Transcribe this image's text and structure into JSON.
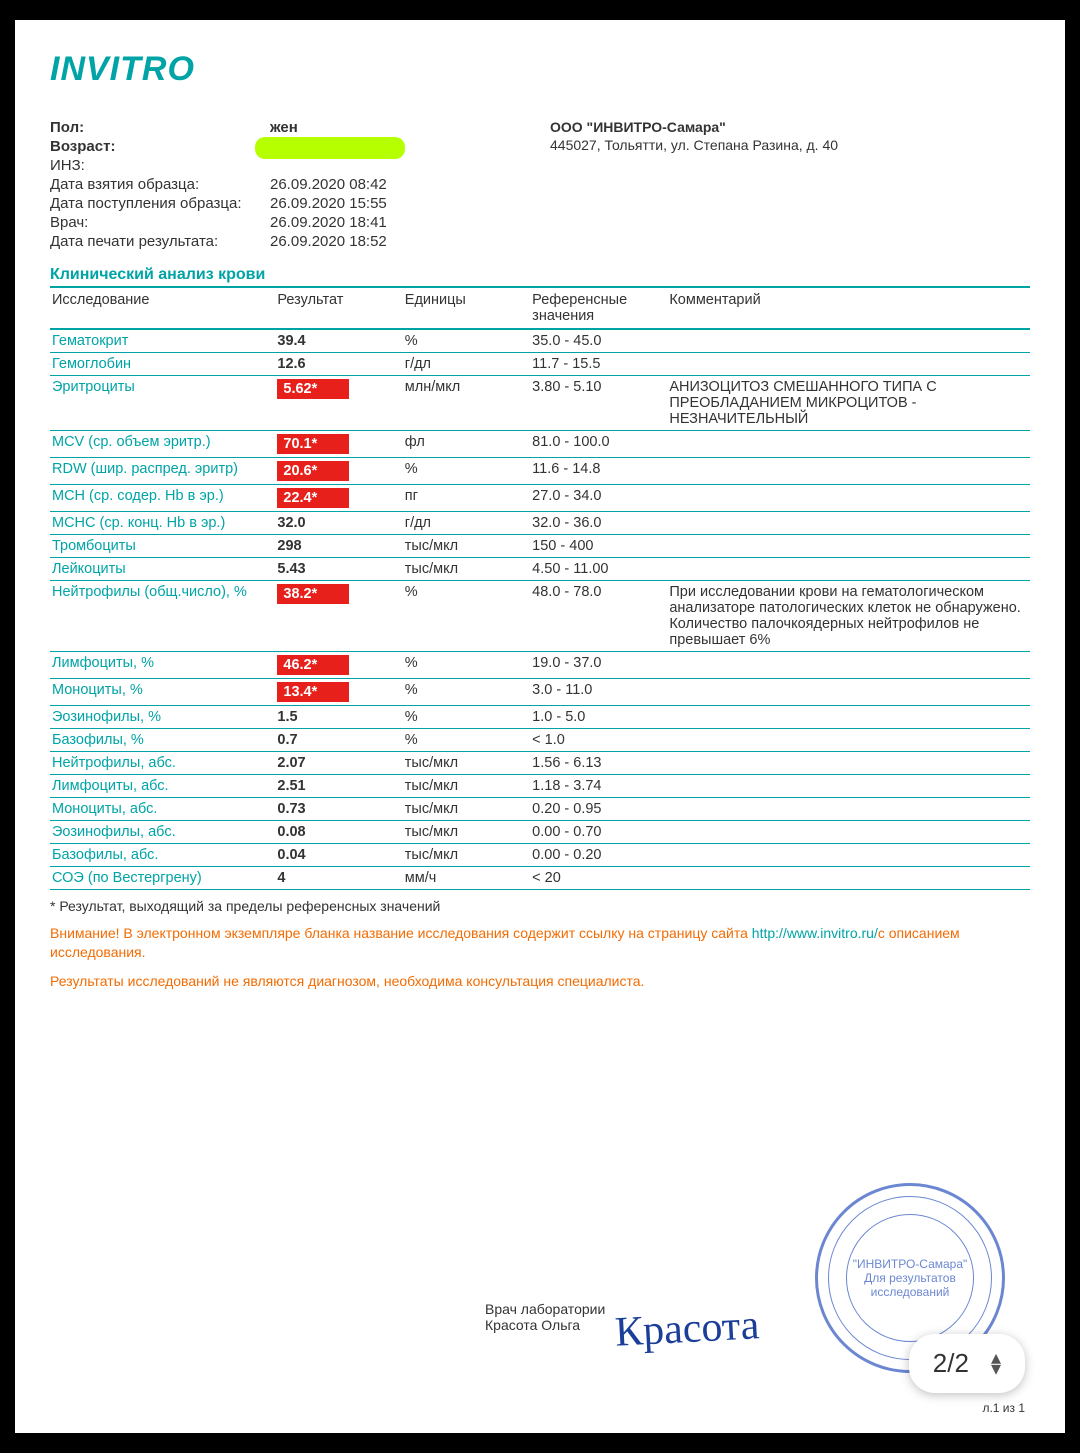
{
  "logo": "INVITRO",
  "org": {
    "name": "ООО \"ИНВИТРО-Самара\"",
    "address": "445027, Тольятти, ул. Степана Разина, д. 40"
  },
  "patient": {
    "sex_label": "Пол:",
    "sex": "жен",
    "age_label": "Возраст:",
    "inz_label": "ИНЗ:",
    "sample_taken_label": "Дата взятия образца:",
    "sample_taken": "26.09.2020 08:42",
    "sample_received_label": "Дата поступления образца:",
    "sample_received": "26.09.2020 15:55",
    "doctor_label": "Врач:",
    "doctor": "26.09.2020 18:41",
    "printed_label": "Дата печати результата:",
    "printed": "26.09.2020 18:52"
  },
  "section_title": "Клинический анализ крови",
  "columns": {
    "test": "Исследование",
    "result": "Результат",
    "units": "Единицы",
    "ref": "Референсные значения",
    "comment": "Комментарий"
  },
  "rows": [
    {
      "test": "Гематокрит",
      "result": "39.4",
      "flag": false,
      "units": "%",
      "ref": "35.0 - 45.0",
      "comment": ""
    },
    {
      "test": "Гемоглобин",
      "result": "12.6",
      "flag": false,
      "units": "г/дл",
      "ref": "11.7 - 15.5",
      "comment": ""
    },
    {
      "test": "Эритроциты",
      "result": "5.62*",
      "flag": true,
      "units": "млн/мкл",
      "ref": "3.80 - 5.10",
      "comment": "АНИЗОЦИТОЗ СМЕШАННОГО ТИПА С ПРЕОБЛАДАНИЕМ МИКРОЦИТОВ - НЕЗНАЧИТЕЛЬНЫЙ"
    },
    {
      "test": "MCV (ср. объем эритр.)",
      "result": "70.1*",
      "flag": true,
      "units": "фл",
      "ref": "81.0 - 100.0",
      "comment": ""
    },
    {
      "test": "RDW (шир. распред. эритр)",
      "result": "20.6*",
      "flag": true,
      "units": "%",
      "ref": "11.6 - 14.8",
      "comment": ""
    },
    {
      "test": "MCH (ср. содер. Hb в эр.)",
      "result": "22.4*",
      "flag": true,
      "units": "пг",
      "ref": "27.0 - 34.0",
      "comment": ""
    },
    {
      "test": "MCHC (ср. конц. Hb в эр.)",
      "result": "32.0",
      "flag": false,
      "units": "г/дл",
      "ref": "32.0 - 36.0",
      "comment": ""
    },
    {
      "test": "Тромбоциты",
      "result": "298",
      "flag": false,
      "units": "тыс/мкл",
      "ref": "150 - 400",
      "comment": ""
    },
    {
      "test": "Лейкоциты",
      "result": "5.43",
      "flag": false,
      "units": "тыс/мкл",
      "ref": "4.50 - 11.00",
      "comment": ""
    },
    {
      "test": "Нейтрофилы (общ.число), %",
      "result": "38.2*",
      "flag": true,
      "units": "%",
      "ref": "48.0 - 78.0",
      "comment": "При исследовании крови на гематологическом анализаторе патологических клеток не обнаружено. Количество палочкоядерных нейтрофилов не превышает 6%"
    },
    {
      "test": "Лимфоциты, %",
      "result": "46.2*",
      "flag": true,
      "units": "%",
      "ref": "19.0 - 37.0",
      "comment": ""
    },
    {
      "test": "Моноциты, %",
      "result": "13.4*",
      "flag": true,
      "units": "%",
      "ref": "3.0 - 11.0",
      "comment": ""
    },
    {
      "test": "Эозинофилы, %",
      "result": "1.5",
      "flag": false,
      "units": "%",
      "ref": "1.0 - 5.0",
      "comment": ""
    },
    {
      "test": "Базофилы, %",
      "result": "0.7",
      "flag": false,
      "units": "%",
      "ref": "< 1.0",
      "comment": ""
    },
    {
      "test": "Нейтрофилы, абс.",
      "result": "2.07",
      "flag": false,
      "units": "тыс/мкл",
      "ref": "1.56 - 6.13",
      "comment": ""
    },
    {
      "test": "Лимфоциты, абс.",
      "result": "2.51",
      "flag": false,
      "units": "тыс/мкл",
      "ref": "1.18 - 3.74",
      "comment": ""
    },
    {
      "test": "Моноциты, абс.",
      "result": "0.73",
      "flag": false,
      "units": "тыс/мкл",
      "ref": "0.20 - 0.95",
      "comment": ""
    },
    {
      "test": "Эозинофилы, абс.",
      "result": "0.08",
      "flag": false,
      "units": "тыс/мкл",
      "ref": "0.00 - 0.70",
      "comment": ""
    },
    {
      "test": "Базофилы, абс.",
      "result": "0.04",
      "flag": false,
      "units": "тыс/мкл",
      "ref": "0.00 - 0.20",
      "comment": ""
    },
    {
      "test": "СОЭ (по Вестергрену)",
      "result": "4",
      "flag": false,
      "units": "мм/ч",
      "ref": "< 20",
      "comment": ""
    }
  ],
  "footnote": "* Результат, выходящий за пределы референсных значений",
  "notice1_prefix": "Внимание!",
  "notice1_text": " В электронном экземпляре бланка название исследования содержит ссылку на страницу сайта ",
  "notice1_link": "http://www.invitro.ru/",
  "notice1_suffix": "с описанием исследования.",
  "notice2": "Результаты исследований не являются диагнозом, необходима консультация специалиста.",
  "sig": {
    "role": "Врач лаборатории",
    "name": "Красота Ольга",
    "handwriting": "Красота"
  },
  "stamp_text": "\"ИНВИТРО-Самара\" Для результатов исследований",
  "page_indicator": "2/2",
  "footer_page": "л.1 из 1"
}
